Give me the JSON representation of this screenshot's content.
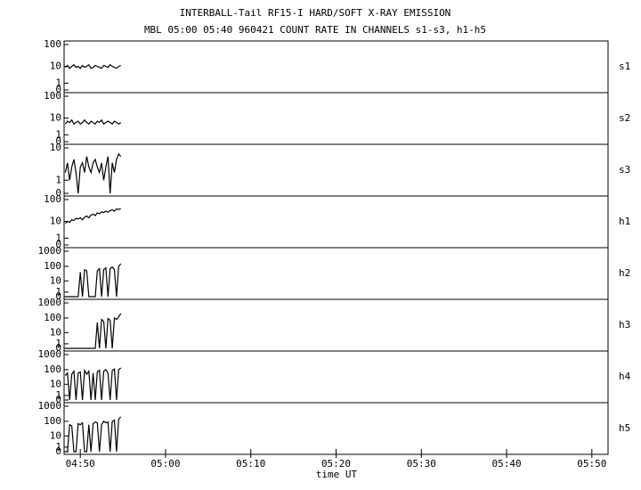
{
  "title": "INTERBALL-Tail RF15-I HARD/SOFT X-RAY EMISSION",
  "subtitle": "MBL 05:00 05:40 960421  COUNT RATE IN CHANNELS s1-s3, h1-h5",
  "x_axis": {
    "label": "time UT",
    "xlim": [
      288.1,
      351.9
    ],
    "xticks": [
      {
        "value": 290,
        "label": "04:50"
      },
      {
        "value": 300,
        "label": "05:00"
      },
      {
        "value": 310,
        "label": "05:10"
      },
      {
        "value": 320,
        "label": "05:20"
      },
      {
        "value": 330,
        "label": "05:30"
      },
      {
        "value": 340,
        "label": "05:40"
      },
      {
        "value": 350,
        "label": "05:50"
      }
    ],
    "x": [
      288.25,
      288.5,
      288.75,
      289,
      289.25,
      289.5,
      289.75,
      290,
      290.25,
      290.5,
      290.75,
      291,
      291.25,
      291.5,
      291.75,
      292,
      292.25,
      292.5,
      292.75,
      293,
      293.25,
      293.5,
      293.75,
      294,
      294.25,
      294.5,
      294.75
    ]
  },
  "chart_data": [
    {
      "type": "line",
      "name": "s1",
      "yscale": "log1p",
      "ylim": [
        0,
        100
      ],
      "yticks": [
        0,
        1,
        10,
        100
      ],
      "color": "#000000",
      "values": [
        9,
        11,
        8,
        10,
        12,
        9,
        10,
        8,
        11,
        9,
        10,
        12,
        8,
        9,
        11,
        10,
        9,
        8,
        11,
        10,
        9,
        12,
        10,
        9,
        8,
        10,
        11
      ]
    },
    {
      "type": "line",
      "name": "s2",
      "yscale": "log1p",
      "ylim": [
        0,
        100
      ],
      "yticks": [
        0,
        1,
        10,
        100
      ],
      "color": "#000000",
      "values": [
        5,
        7,
        6,
        8,
        5,
        6,
        7,
        5,
        6,
        8,
        6,
        5,
        7,
        6,
        5,
        7,
        6,
        8,
        5,
        6,
        7,
        6,
        5,
        7,
        6,
        5,
        6
      ]
    },
    {
      "type": "line",
      "name": "s3",
      "yscale": "log1p",
      "ylim": [
        0,
        10
      ],
      "yticks": [
        0,
        1,
        10
      ],
      "color": "#000000",
      "values": [
        2,
        4,
        1,
        3,
        5,
        2,
        0,
        3,
        4,
        2,
        6,
        3,
        2,
        4,
        5,
        3,
        2,
        4,
        1,
        3,
        6,
        0,
        4,
        2,
        5,
        7,
        6
      ]
    },
    {
      "type": "line",
      "name": "h1",
      "yscale": "log1p",
      "ylim": [
        0,
        100
      ],
      "yticks": [
        0,
        1,
        10,
        100
      ],
      "color": "#000000",
      "values": [
        8,
        10,
        9,
        12,
        11,
        14,
        13,
        15,
        12,
        16,
        18,
        15,
        20,
        22,
        19,
        25,
        23,
        28,
        26,
        30,
        27,
        32,
        35,
        30,
        38,
        36,
        40
      ]
    },
    {
      "type": "line",
      "name": "h2",
      "yscale": "log1p",
      "ylim": [
        0,
        1000
      ],
      "yticks": [
        0,
        1,
        10,
        100,
        1000
      ],
      "color": "#000000",
      "values": [
        0,
        0,
        0,
        0,
        0,
        0,
        0,
        40,
        0,
        60,
        50,
        0,
        0,
        0,
        0,
        50,
        70,
        0,
        60,
        80,
        0,
        70,
        90,
        60,
        0,
        100,
        150
      ]
    },
    {
      "type": "line",
      "name": "h3",
      "yscale": "log1p",
      "ylim": [
        0,
        1000
      ],
      "yticks": [
        0,
        1,
        10,
        100,
        1000
      ],
      "color": "#000000",
      "values": [
        0,
        0,
        0,
        0,
        0,
        0,
        0,
        0,
        0,
        0,
        0,
        0,
        0,
        0,
        0,
        50,
        0,
        80,
        60,
        0,
        90,
        70,
        0,
        100,
        80,
        120,
        200
      ]
    },
    {
      "type": "line",
      "name": "h4",
      "yscale": "log1p",
      "ylim": [
        0,
        1000
      ],
      "yticks": [
        0,
        1,
        10,
        100,
        1000
      ],
      "color": "#000000",
      "values": [
        40,
        60,
        0,
        50,
        80,
        0,
        60,
        70,
        0,
        90,
        50,
        80,
        0,
        60,
        0,
        70,
        90,
        0,
        80,
        100,
        60,
        0,
        90,
        110,
        0,
        100,
        130
      ]
    },
    {
      "type": "line",
      "name": "h5",
      "yscale": "log1p",
      "ylim": [
        0,
        1000
      ],
      "yticks": [
        0,
        1,
        10,
        100,
        1000
      ],
      "color": "#000000",
      "values": [
        0,
        0,
        60,
        50,
        0,
        0,
        70,
        60,
        80,
        0,
        0,
        60,
        0,
        70,
        90,
        80,
        0,
        60,
        100,
        80,
        90,
        0,
        100,
        120,
        0,
        140,
        200
      ]
    }
  ]
}
